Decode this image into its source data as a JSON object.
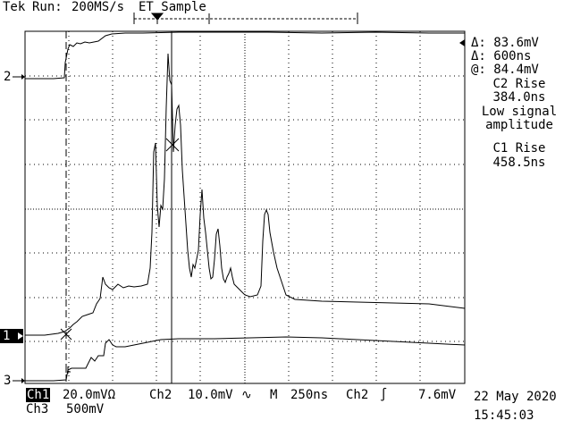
{
  "header": {
    "brand": "Tek",
    "status": "Run:",
    "sample_rate": "200MS/s",
    "mode": "ET Sample"
  },
  "markers": {
    "ch2": "2",
    "ch1": "1",
    "ch3": "3"
  },
  "readout": {
    "delta_v": "Δ: 83.6mV",
    "delta_t": "Δ: 600ns",
    "at": "@: 84.4mV",
    "meas1_name": "C2 Rise",
    "meas1_value": "384.0ns",
    "meas1_warning_1": "Low signal",
    "meas1_warning_2": "amplitude",
    "meas2_name": "C1 Rise",
    "meas2_value": "458.5ns"
  },
  "footer": {
    "ch1_label": "Ch1",
    "ch1_scale": "20.0mVΩ",
    "ch2_label": "Ch2",
    "ch2_scale": "10.0mV",
    "ch2_bw_symbol": "∿",
    "timebase_label": "M",
    "timebase": "250ns",
    "trigger_source": "Ch2",
    "trigger_slope": "∫",
    "trigger_level": "7.6mV",
    "ch3_label": "Ch3",
    "ch3_scale": "500mV",
    "date": "22 May 2020",
    "time": "15:45:03"
  }
}
